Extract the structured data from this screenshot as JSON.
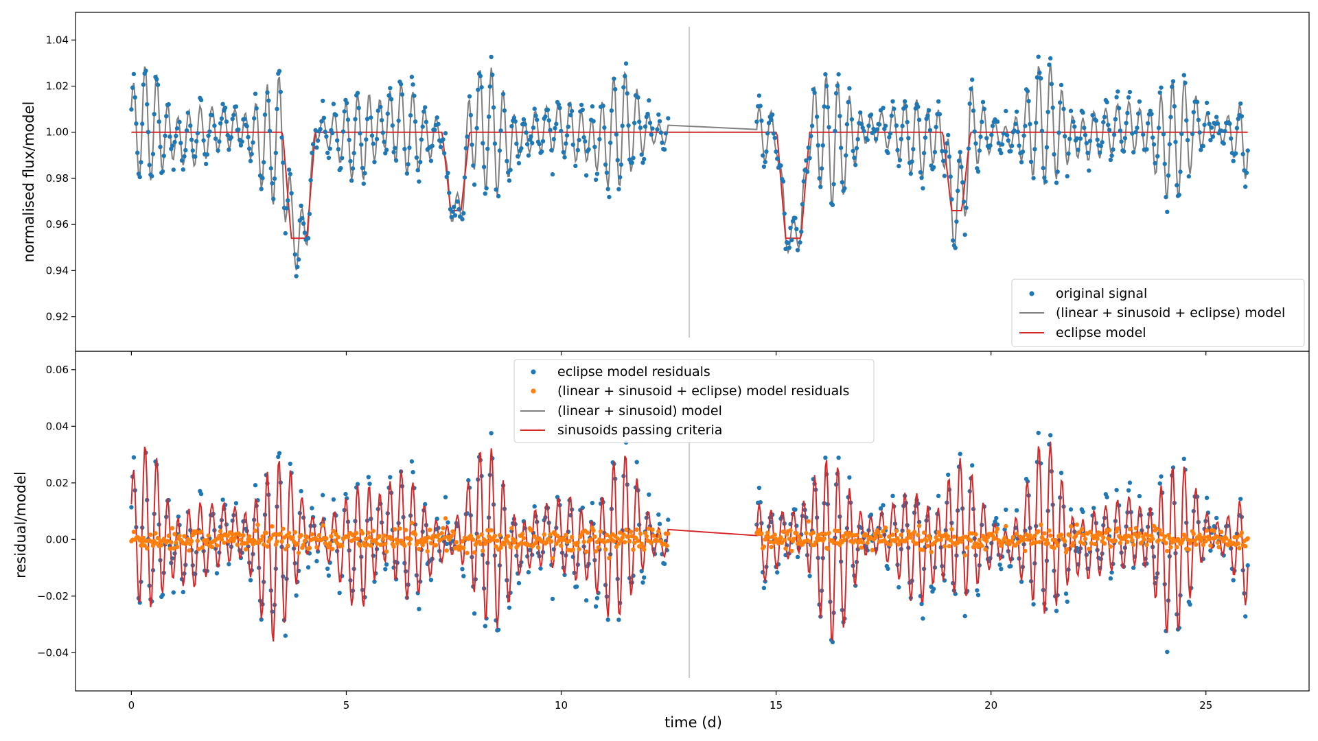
{
  "chart_data": [
    {
      "type": "scatter",
      "panel": "top",
      "xlabel": "",
      "ylabel": "normalised flux/model",
      "xlim": [
        -1.3,
        27.4
      ],
      "ylim": [
        0.905,
        1.052
      ],
      "xticks": [
        0,
        5,
        10,
        15,
        20,
        25
      ],
      "yticks": [
        0.92,
        0.94,
        0.96,
        0.98,
        1.0,
        1.02,
        1.04
      ],
      "ytick_labels": [
        "0.92",
        "0.94",
        "0.96",
        "0.98",
        "1.00",
        "1.02",
        "1.04"
      ],
      "gap_marker_x": 12.98,
      "gap_range": [
        12.5,
        14.55
      ],
      "time_segments": [
        [
          0.0,
          12.5
        ],
        [
          14.55,
          26.0
        ]
      ],
      "eclipses": [
        {
          "center": 3.9,
          "depth": 0.046,
          "half_width": 0.38
        },
        {
          "center": 7.55,
          "depth": 0.034,
          "half_width": 0.32
        },
        {
          "center": 15.4,
          "depth": 0.046,
          "half_width": 0.38
        },
        {
          "center": 19.2,
          "depth": 0.034,
          "half_width": 0.32
        }
      ],
      "sinusoids": [
        {
          "amplitude": 0.018,
          "period": 0.26,
          "phase": 0.3
        },
        {
          "amplitude": 0.008,
          "period": 0.31,
          "phase": 1.1
        },
        {
          "amplitude": 0.004,
          "period": 1.9,
          "phase": 0.5
        }
      ],
      "series": [
        {
          "name": "original signal",
          "kind": "points",
          "color": "#1f77b4"
        },
        {
          "name": "(linear + sinusoid + eclipse) model",
          "kind": "line",
          "color": "#7f7f7f"
        },
        {
          "name": "eclipse model",
          "kind": "line",
          "color": "#d62728"
        }
      ],
      "legend_position": "lower-right"
    },
    {
      "type": "scatter",
      "panel": "bottom",
      "xlabel": "time (d)",
      "ylabel": "residual/model",
      "xlim": [
        -1.3,
        27.4
      ],
      "ylim": [
        -0.0535,
        0.0665
      ],
      "xticks": [
        0,
        5,
        10,
        15,
        20,
        25
      ],
      "xtick_labels": [
        "0",
        "5",
        "10",
        "15",
        "20",
        "25"
      ],
      "yticks": [
        -0.04,
        -0.02,
        0.0,
        0.02,
        0.04,
        0.06
      ],
      "ytick_labels": [
        "−0.04",
        "−0.02",
        "0.00",
        "0.02",
        "0.04",
        "0.06"
      ],
      "gap_marker_x": 12.98,
      "series": [
        {
          "name": "eclipse model residuals",
          "kind": "points",
          "color": "#1f77b4"
        },
        {
          "name": "(linear + sinusoid + eclipse) model residuals",
          "kind": "points",
          "color": "#ff7f0e"
        },
        {
          "name": "(linear + sinusoid) model",
          "kind": "line",
          "color": "#7f7f7f"
        },
        {
          "name": "sinusoids passing criteria",
          "kind": "line",
          "color": "#d62728"
        }
      ],
      "legend_position": "upper-center"
    }
  ]
}
